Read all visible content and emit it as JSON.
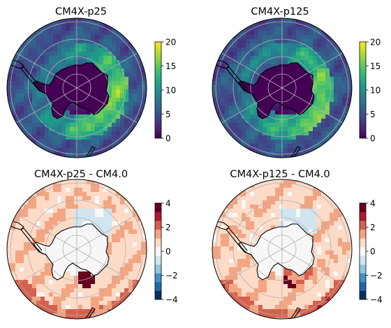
{
  "chart_data": [
    {
      "type": "heatmap",
      "projection": "south-polar-stereographic",
      "title": "CM4X-p25",
      "colormap": "viridis",
      "colorbar": {
        "min": 0,
        "max": 20,
        "ticks": [
          "0",
          "5",
          "10",
          "15",
          "20"
        ]
      },
      "grid": true
    },
    {
      "type": "heatmap",
      "projection": "south-polar-stereographic",
      "title": "CM4X-p125",
      "colormap": "viridis",
      "colorbar": {
        "min": 0,
        "max": 20,
        "ticks": [
          "0",
          "5",
          "10",
          "15",
          "20"
        ]
      },
      "grid": true
    },
    {
      "type": "heatmap",
      "projection": "south-polar-stereographic",
      "title": "CM4X-p25 - CM4.0",
      "colormap": "RdBu_r",
      "colorbar": {
        "min": -4,
        "max": 4,
        "ticks": [
          "−4",
          "−2",
          "0",
          "2",
          "4"
        ]
      },
      "grid": true
    },
    {
      "type": "heatmap",
      "projection": "south-polar-stereographic",
      "title": "CM4X-p125 - CM4.0",
      "colormap": "RdBu_r",
      "colorbar": {
        "min": -4,
        "max": 4,
        "ticks": [
          "−4",
          "−2",
          "0",
          "2",
          "4"
        ]
      },
      "grid": true
    }
  ],
  "colors": {
    "viridis": [
      "#440154",
      "#482878",
      "#3e4989",
      "#31688e",
      "#26828e",
      "#1f9e89",
      "#35b779",
      "#6ece58",
      "#b5de2b",
      "#fde725"
    ],
    "rdbu_r": [
      "#053061",
      "#2166ac",
      "#4393c3",
      "#92c5de",
      "#d1e5f0",
      "#f7f7f7",
      "#fddbc7",
      "#f4a582",
      "#d6604d",
      "#b2182b",
      "#67001f"
    ],
    "coastline": "#000000",
    "gridline": "#b0b0b0"
  }
}
